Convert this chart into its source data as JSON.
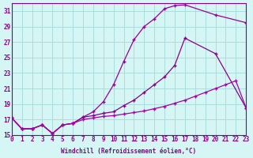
{
  "xlabel": "Windchill (Refroidissement éolien,°C)",
  "bg_color": "#d6f5f5",
  "grid_color": "#aadddd",
  "line_color1": "#990099",
  "line_color2": "#880088",
  "line_color3": "#aa00aa",
  "xlim": [
    0,
    23
  ],
  "ylim": [
    15,
    32
  ],
  "yticks": [
    15,
    17,
    19,
    21,
    23,
    25,
    27,
    29,
    31
  ],
  "xticks": [
    0,
    1,
    2,
    3,
    4,
    5,
    6,
    7,
    8,
    9,
    10,
    11,
    12,
    13,
    14,
    15,
    16,
    17,
    18,
    19,
    20,
    21,
    22,
    23
  ],
  "series1_x": [
    0,
    1,
    2,
    3,
    4,
    5,
    6,
    7,
    8,
    9,
    10,
    11,
    12,
    13,
    14,
    15,
    16,
    17,
    20,
    23
  ],
  "series1_y": [
    17.2,
    15.8,
    15.8,
    16.3,
    15.2,
    16.3,
    16.5,
    17.3,
    18.0,
    19.3,
    21.5,
    24.5,
    27.3,
    29.0,
    30.0,
    31.3,
    31.7,
    31.8,
    30.5,
    29.5
  ],
  "series2_x": [
    0,
    1,
    2,
    3,
    4,
    5,
    6,
    7,
    8,
    9,
    10,
    11,
    12,
    13,
    14,
    15,
    16,
    17,
    20,
    23
  ],
  "series2_y": [
    17.2,
    15.8,
    15.8,
    16.3,
    15.2,
    16.3,
    16.5,
    17.3,
    17.5,
    17.8,
    18.0,
    18.8,
    19.5,
    20.5,
    21.5,
    22.5,
    24.0,
    27.5,
    25.5,
    18.5
  ],
  "series3_x": [
    0,
    1,
    2,
    3,
    4,
    5,
    6,
    7,
    8,
    9,
    10,
    11,
    12,
    13,
    14,
    15,
    16,
    17,
    18,
    19,
    20,
    21,
    22,
    23
  ],
  "series3_y": [
    17.2,
    15.8,
    15.8,
    16.3,
    15.2,
    16.3,
    16.5,
    17.0,
    17.2,
    17.4,
    17.5,
    17.7,
    17.9,
    18.1,
    18.4,
    18.7,
    19.1,
    19.5,
    20.0,
    20.5,
    21.0,
    21.5,
    22.0,
    18.5
  ]
}
